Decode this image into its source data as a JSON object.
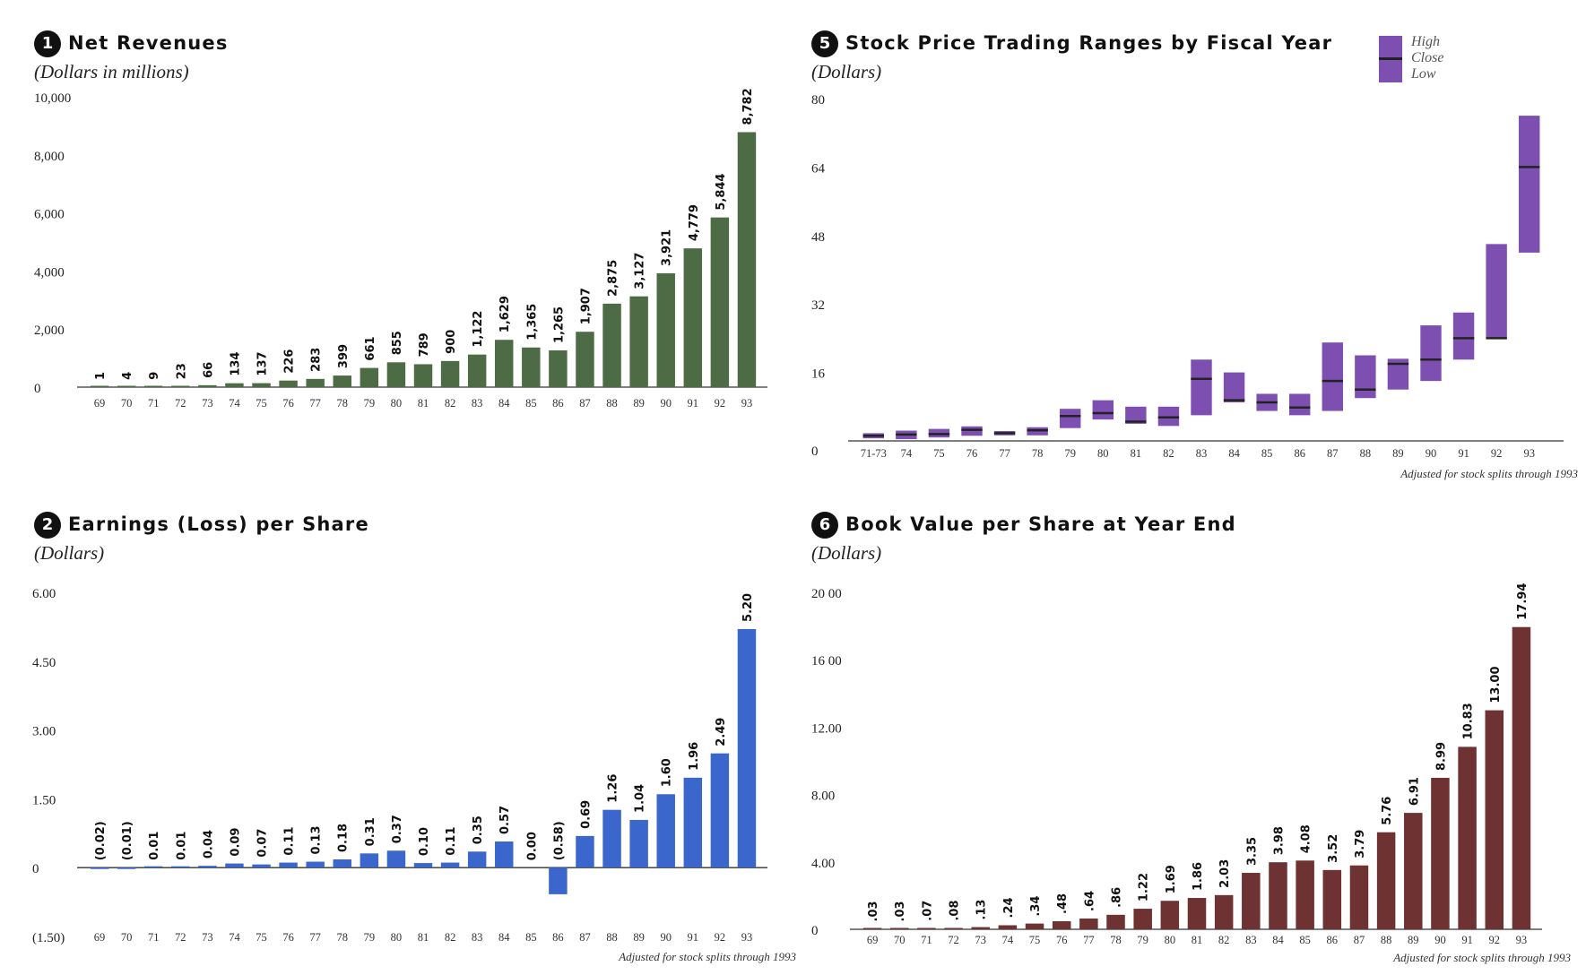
{
  "charts": [
    {
      "num": "1",
      "title": "Net Revenues",
      "subtitle": "(Dollars in millions)",
      "footnote": "",
      "color": "#4d6b45"
    },
    {
      "num": "5",
      "title": "Stock Price Trading Ranges by Fiscal Year",
      "subtitle": "(Dollars)",
      "footnote": "Adjusted for stock splits through 1993",
      "color": "#7d4fb1",
      "legend": {
        "high": "High",
        "close": "Close",
        "low": "Low"
      }
    },
    {
      "num": "2",
      "title": "Earnings (Loss) per Share",
      "subtitle": "(Dollars)",
      "footnote": "Adjusted for stock splits through 1993",
      "color": "#3b66cc"
    },
    {
      "num": "6",
      "title": "Book Value per Share at Year End",
      "subtitle": "(Dollars)",
      "footnote": "Adjusted for stock splits through 1993",
      "color": "#6e3232"
    }
  ],
  "chart_data": [
    {
      "type": "bar",
      "title": "Net Revenues",
      "subtitle": "(Dollars in millions)",
      "categories": [
        "69",
        "70",
        "71",
        "72",
        "73",
        "74",
        "75",
        "76",
        "77",
        "78",
        "79",
        "80",
        "81",
        "82",
        "83",
        "84",
        "85",
        "86",
        "87",
        "88",
        "89",
        "90",
        "91",
        "92",
        "93"
      ],
      "values": [
        1,
        4,
        9,
        23,
        66,
        134,
        137,
        226,
        283,
        399,
        661,
        855,
        789,
        900,
        1122,
        1629,
        1365,
        1265,
        1907,
        2875,
        3127,
        3921,
        4779,
        5844,
        8782
      ],
      "labels": [
        "1",
        "4",
        "9",
        "23",
        "66",
        "134",
        "137",
        "226",
        "283",
        "399",
        "661",
        "855",
        "789",
        "900",
        "1,122",
        "1,629",
        "1,365",
        "1,265",
        "1,907",
        "2,875",
        "3,127",
        "3,921",
        "4,779",
        "5,844",
        "8,782"
      ],
      "ylim": [
        0,
        10000
      ],
      "yticks": [
        0,
        2000,
        4000,
        6000,
        8000,
        10000
      ],
      "ytick_labels": [
        "0",
        "2,000",
        "4,000",
        "6,000",
        "8,000",
        "10,000"
      ],
      "color": "#4d6b45"
    },
    {
      "type": "range",
      "title": "Stock Price Trading Ranges by Fiscal Year",
      "subtitle": "(Dollars)",
      "categories": [
        "71-73",
        "74",
        "75",
        "76",
        "77",
        "78",
        "79",
        "80",
        "81",
        "82",
        "83",
        "84",
        "85",
        "86",
        "87",
        "88",
        "89",
        "90",
        "91",
        "92",
        "93"
      ],
      "high": [
        1.8,
        2.4,
        2.8,
        3.4,
        2.3,
        3.2,
        7.5,
        9.5,
        8.0,
        8.0,
        19.0,
        16.0,
        11.0,
        11.0,
        23.0,
        20.0,
        19.2,
        27.0,
        30.0,
        46.0,
        76.0
      ],
      "low": [
        0.6,
        0.4,
        0.8,
        1.2,
        1.3,
        1.3,
        3.0,
        5.0,
        4.0,
        3.5,
        6.0,
        9.0,
        7.0,
        6.0,
        7.0,
        10.0,
        12.0,
        14.0,
        19.0,
        24.0,
        44.0
      ],
      "close": [
        1.2,
        1.5,
        1.6,
        2.6,
        1.8,
        2.5,
        5.8,
        6.5,
        4.5,
        5.5,
        14.5,
        9.5,
        9.0,
        7.8,
        14.0,
        12.0,
        18.0,
        19.0,
        24.0,
        24.0,
        64.0
      ],
      "ylim": [
        0,
        80
      ],
      "yticks": [
        16,
        32,
        48,
        64,
        80
      ],
      "ytick_labels": [
        "16",
        "32",
        "48",
        "64",
        "80"
      ],
      "zero_label": "0",
      "color": "#7d4fb1"
    },
    {
      "type": "bar",
      "title": "Earnings (Loss) per Share",
      "subtitle": "(Dollars)",
      "categories": [
        "69",
        "70",
        "71",
        "72",
        "73",
        "74",
        "75",
        "76",
        "77",
        "78",
        "79",
        "80",
        "81",
        "82",
        "83",
        "84",
        "85",
        "86",
        "87",
        "88",
        "89",
        "90",
        "91",
        "92",
        "93"
      ],
      "values": [
        -0.02,
        -0.01,
        0.01,
        0.01,
        0.04,
        0.09,
        0.07,
        0.11,
        0.13,
        0.18,
        0.31,
        0.37,
        0.1,
        0.11,
        0.35,
        0.57,
        0.0,
        -0.58,
        0.69,
        1.26,
        1.04,
        1.6,
        1.96,
        2.49,
        5.2
      ],
      "labels": [
        "(0.02)",
        "(0.01)",
        "0.01",
        "0.01",
        "0.04",
        "0.09",
        "0.07",
        "0.11",
        "0.13",
        "0.18",
        "0.31",
        "0.37",
        "0.10",
        "0.11",
        "0.35",
        "0.57",
        "0.00",
        "(0.58)",
        "0.69",
        "1.26",
        "1.04",
        "1.60",
        "1.96",
        "2.49",
        "5.20"
      ],
      "ylim": [
        -1.5,
        6.0
      ],
      "yticks": [
        -1.5,
        0,
        1.5,
        3.0,
        4.5,
        6.0
      ],
      "ytick_labels": [
        "(1.50)",
        "0",
        "1.50",
        "3.00",
        "4.50",
        "6.00"
      ],
      "color": "#3b66cc"
    },
    {
      "type": "bar",
      "title": "Book Value per Share at Year End",
      "subtitle": "(Dollars)",
      "categories": [
        "69",
        "70",
        "71",
        "72",
        "73",
        "74",
        "75",
        "76",
        "77",
        "78",
        "79",
        "80",
        "81",
        "82",
        "83",
        "84",
        "85",
        "86",
        "87",
        "88",
        "89",
        "90",
        "91",
        "92",
        "93"
      ],
      "values": [
        0.03,
        0.03,
        0.07,
        0.08,
        0.13,
        0.24,
        0.34,
        0.48,
        0.64,
        0.86,
        1.22,
        1.69,
        1.86,
        2.03,
        3.35,
        3.98,
        4.08,
        3.52,
        3.79,
        5.76,
        6.91,
        8.99,
        10.83,
        13.0,
        17.94
      ],
      "labels": [
        ".03",
        ".03",
        ".07",
        ".08",
        ".13",
        ".24",
        ".34",
        ".48",
        ".64",
        ".86",
        "1.22",
        "1.69",
        "1.86",
        "2.03",
        "3.35",
        "3.98",
        "4.08",
        "3.52",
        "3.79",
        "5.76",
        "6.91",
        "8.99",
        "10.83",
        "13.00",
        "17.94"
      ],
      "ylim": [
        0,
        20
      ],
      "yticks": [
        0,
        4,
        8,
        12,
        16,
        20
      ],
      "ytick_labels": [
        "0",
        "4.00",
        "8.00",
        "12.00",
        "16 00",
        "20 00"
      ],
      "color": "#6e3232"
    }
  ]
}
